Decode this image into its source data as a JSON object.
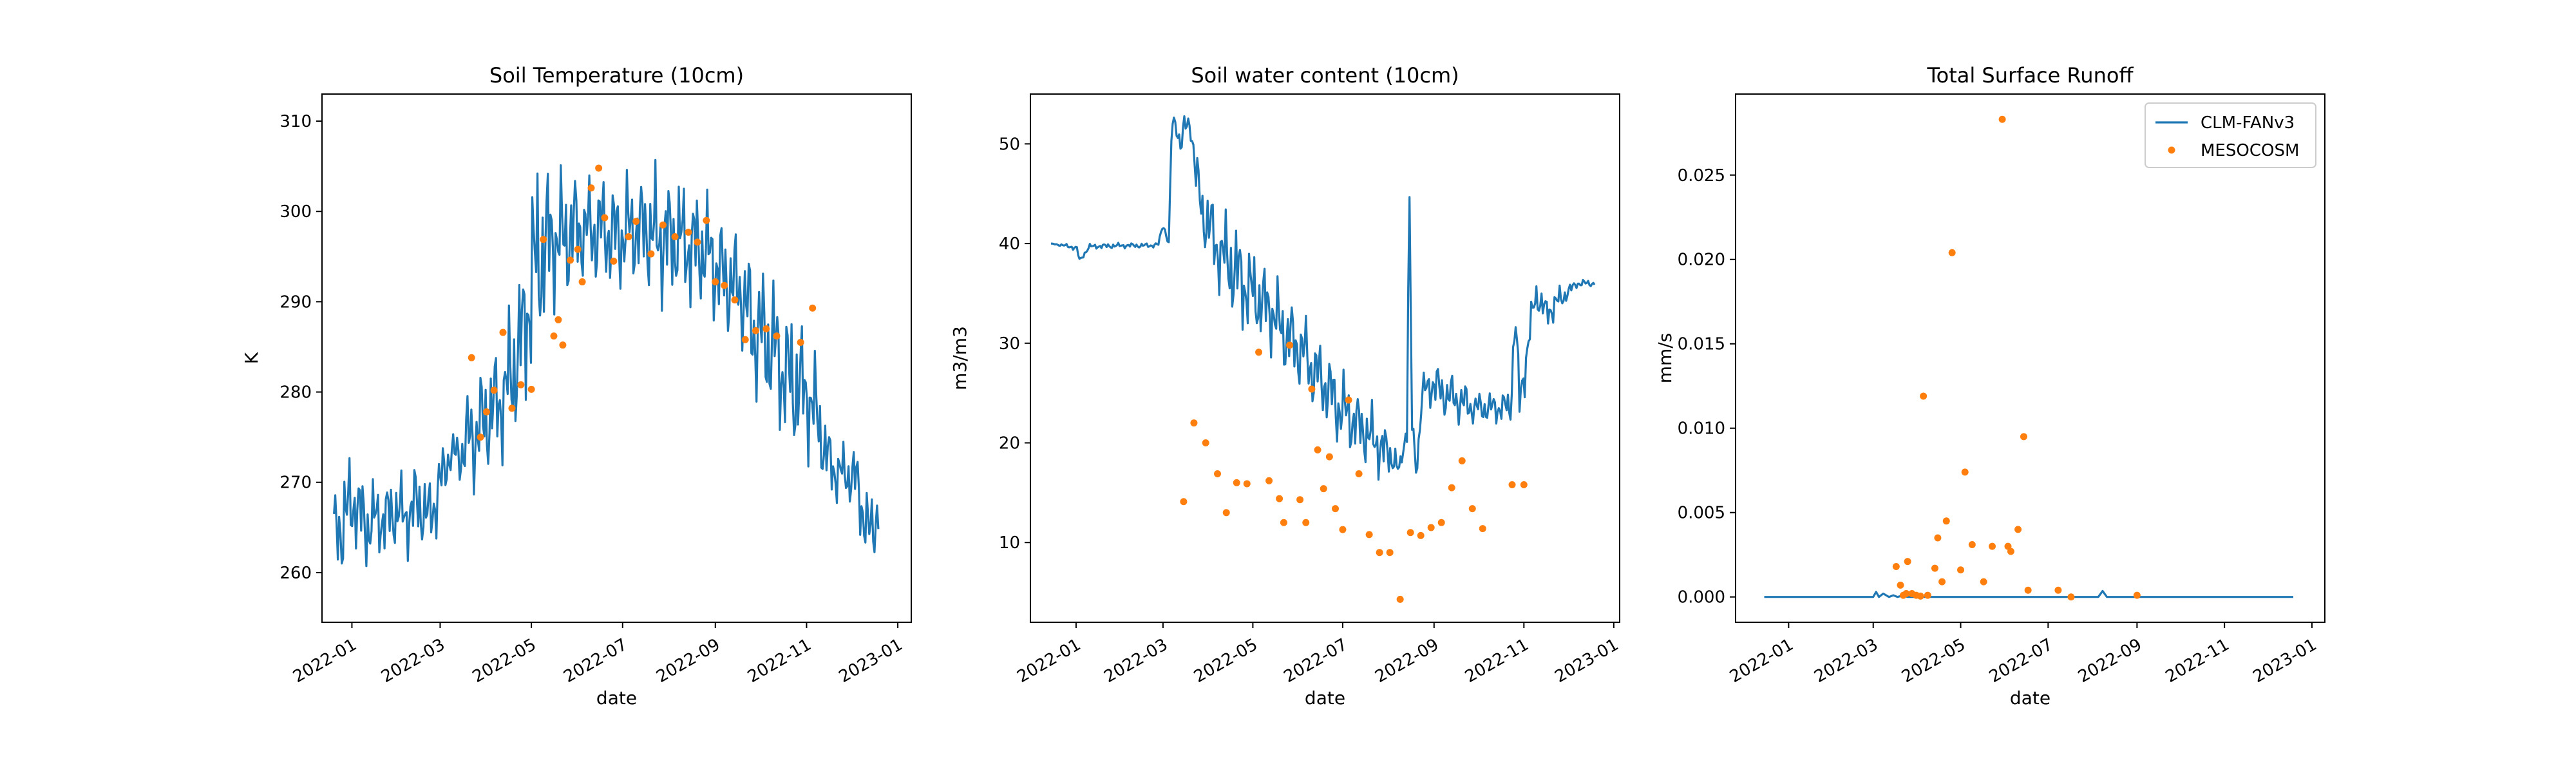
{
  "chart_data": [
    {
      "type": "line",
      "title": "Soil Temperature (10cm)",
      "xlabel": "date",
      "ylabel": "K",
      "xlim": [
        "2021-12-12",
        "2023-01-10"
      ],
      "ylim": [
        254.5,
        313
      ],
      "yticks": [
        260,
        270,
        280,
        290,
        300,
        310
      ],
      "xticks": [
        "2022-01",
        "2022-03",
        "2022-05",
        "2022-07",
        "2022-09",
        "2022-11",
        "2023-01"
      ],
      "grid": false,
      "series": [
        {
          "name": "CLM-FANv3",
          "style": "line",
          "color": "#1f77b4",
          "x": [
            "2021-12-20",
            "2021-12-27",
            "2022-01-03",
            "2022-01-10",
            "2022-01-17",
            "2022-01-24",
            "2022-01-31",
            "2022-02-07",
            "2022-02-14",
            "2022-02-21",
            "2022-02-28",
            "2022-03-07",
            "2022-03-14",
            "2022-03-21",
            "2022-03-28",
            "2022-04-04",
            "2022-04-11",
            "2022-04-18",
            "2022-04-25",
            "2022-05-02",
            "2022-05-09",
            "2022-05-16",
            "2022-05-23",
            "2022-05-30",
            "2022-06-06",
            "2022-06-13",
            "2022-06-20",
            "2022-06-27",
            "2022-07-04",
            "2022-07-11",
            "2022-07-18",
            "2022-07-25",
            "2022-08-01",
            "2022-08-08",
            "2022-08-15",
            "2022-08-22",
            "2022-08-29",
            "2022-09-05",
            "2022-09-12",
            "2022-09-19",
            "2022-09-26",
            "2022-10-03",
            "2022-10-10",
            "2022-10-17",
            "2022-10-24",
            "2022-10-31",
            "2022-11-07",
            "2022-11-14",
            "2022-11-21",
            "2022-11-28",
            "2022-12-05",
            "2022-12-12",
            "2022-12-19"
          ],
          "y": [
            264,
            266,
            268,
            265,
            266,
            266,
            267,
            266,
            268,
            266,
            269,
            273,
            273,
            275,
            276,
            278,
            279,
            282,
            286,
            293,
            296,
            297,
            297,
            298,
            298,
            298,
            298,
            297,
            298,
            298,
            298,
            297,
            297,
            297,
            296,
            296,
            295,
            293,
            292,
            291,
            287,
            286,
            285,
            282,
            281,
            280,
            278,
            273,
            271,
            271,
            270,
            264,
            267
          ],
          "band": [
            6,
            8,
            6,
            6,
            5,
            5,
            5,
            5,
            6,
            5,
            6,
            3,
            4,
            8,
            8,
            8,
            8,
            10,
            10,
            14,
            12,
            9,
            9,
            8,
            7,
            8,
            8,
            8,
            8,
            7,
            8,
            9,
            8,
            8,
            8,
            8,
            8,
            8,
            8,
            8,
            10,
            10,
            10,
            9,
            10,
            8,
            7,
            5,
            4,
            4,
            5,
            6,
            5
          ]
        },
        {
          "name": "MESOCOSM",
          "style": "points",
          "color": "#ff7f0e",
          "x": [
            "2022-03-22",
            "2022-03-28",
            "2022-04-01",
            "2022-04-06",
            "2022-04-12",
            "2022-04-18",
            "2022-04-24",
            "2022-05-01",
            "2022-05-09",
            "2022-05-16",
            "2022-05-19",
            "2022-05-22",
            "2022-05-27",
            "2022-06-01",
            "2022-06-04",
            "2022-06-10",
            "2022-06-15",
            "2022-06-19",
            "2022-06-25",
            "2022-07-05",
            "2022-07-10",
            "2022-07-20",
            "2022-07-28",
            "2022-08-05",
            "2022-08-14",
            "2022-08-20",
            "2022-08-26",
            "2022-09-01",
            "2022-09-07",
            "2022-09-14",
            "2022-09-21",
            "2022-09-28",
            "2022-10-05",
            "2022-10-12",
            "2022-10-28",
            "2022-11-05"
          ],
          "y": [
            283.8,
            275,
            277.8,
            280.2,
            286.6,
            278.2,
            280.8,
            280.3,
            296.9,
            286.2,
            288,
            285.2,
            294.6,
            295.8,
            292.2,
            302.6,
            304.8,
            299.3,
            294.5,
            297.2,
            298.9,
            295.3,
            298.5,
            297.2,
            297.7,
            296.6,
            299,
            292.2,
            291.8,
            290.2,
            285.8,
            286.8,
            287,
            286.2,
            285.5,
            289.3
          ]
        }
      ]
    },
    {
      "type": "line",
      "title": "Soil water content (10cm)",
      "xlabel": "date",
      "ylabel": "m3/m3",
      "xlim": [
        "2021-12-01",
        "2023-01-05"
      ],
      "ylim": [
        2,
        55
      ],
      "yticks": [
        10,
        20,
        30,
        40,
        50
      ],
      "xticks": [
        "2022-01",
        "2022-03",
        "2022-05",
        "2022-07",
        "2022-09",
        "2022-11",
        "2023-01"
      ],
      "grid": false,
      "series": [
        {
          "name": "CLM-FANv3",
          "style": "line",
          "color": "#1f77b4",
          "x": [
            "2021-12-15",
            "2021-12-28",
            "2022-01-02",
            "2022-01-03",
            "2022-01-10",
            "2022-02-01",
            "2022-02-20",
            "2022-02-26",
            "2022-03-01",
            "2022-03-03",
            "2022-03-05",
            "2022-03-07",
            "2022-03-10",
            "2022-03-13",
            "2022-03-16",
            "2022-03-20",
            "2022-03-24",
            "2022-03-28",
            "2022-04-01",
            "2022-04-05",
            "2022-04-10",
            "2022-04-15",
            "2022-04-20",
            "2022-04-25",
            "2022-05-01",
            "2022-05-08",
            "2022-05-15",
            "2022-05-22",
            "2022-05-29",
            "2022-06-05",
            "2022-06-12",
            "2022-06-19",
            "2022-06-26",
            "2022-07-03",
            "2022-07-10",
            "2022-07-17",
            "2022-07-24",
            "2022-07-31",
            "2022-08-05",
            "2022-08-08",
            "2022-08-10",
            "2022-08-14",
            "2022-08-15",
            "2022-08-17",
            "2022-08-20",
            "2022-08-24",
            "2022-08-31",
            "2022-09-07",
            "2022-09-14",
            "2022-09-21",
            "2022-09-28",
            "2022-10-05",
            "2022-10-12",
            "2022-10-19",
            "2022-10-23",
            "2022-10-26",
            "2022-10-29",
            "2022-11-02",
            "2022-11-09",
            "2022-11-16",
            "2022-11-23",
            "2022-11-30",
            "2022-12-07",
            "2022-12-14",
            "2022-12-19"
          ],
          "y": [
            40,
            39.7,
            39.5,
            38.2,
            39.7,
            39.8,
            39.8,
            39.9,
            42,
            41,
            40,
            52,
            52,
            50,
            51.6,
            52,
            46,
            43,
            42,
            40,
            39,
            38,
            37,
            36,
            35,
            34,
            33,
            31,
            30,
            29,
            27,
            26,
            24,
            23,
            22,
            21,
            20,
            19,
            18.5,
            17,
            18.5,
            22,
            49.5,
            22,
            17,
            25,
            26,
            25,
            24.5,
            24,
            23.5,
            23.5,
            23.5,
            23.6,
            23.5,
            33,
            24,
            28,
            35,
            33,
            34,
            35,
            36,
            36,
            36
          ],
          "band": [
            0,
            0.3,
            0.3,
            0.3,
            0.3,
            0.3,
            0.3,
            0.3,
            0.5,
            0.5,
            0.5,
            1,
            1.5,
            2,
            2,
            2,
            4,
            4,
            5,
            5,
            5,
            6,
            6,
            6,
            5,
            5,
            5,
            5,
            5,
            5,
            5,
            5,
            5,
            5,
            4,
            4,
            4,
            3,
            2,
            1,
            1,
            2,
            0,
            2,
            1,
            2,
            3,
            3,
            3,
            3,
            2,
            2,
            2,
            2,
            2,
            3,
            3,
            3,
            2,
            2,
            2,
            1,
            0.5,
            0.5,
            0.3
          ]
        },
        {
          "name": "MESOCOSM",
          "style": "points",
          "color": "#ff7f0e",
          "x": [
            "2022-03-15",
            "2022-03-22",
            "2022-03-30",
            "2022-04-07",
            "2022-04-13",
            "2022-04-20",
            "2022-04-27",
            "2022-05-05",
            "2022-05-12",
            "2022-05-19",
            "2022-05-22",
            "2022-05-26",
            "2022-06-02",
            "2022-06-06",
            "2022-06-10",
            "2022-06-14",
            "2022-06-18",
            "2022-06-22",
            "2022-06-26",
            "2022-07-01",
            "2022-07-05",
            "2022-07-12",
            "2022-07-19",
            "2022-07-26",
            "2022-08-02",
            "2022-08-09",
            "2022-08-16",
            "2022-08-23",
            "2022-08-30",
            "2022-09-06",
            "2022-09-13",
            "2022-09-20",
            "2022-09-27",
            "2022-10-04",
            "2022-10-24",
            "2022-11-01"
          ],
          "y": [
            14.1,
            22,
            20,
            16.9,
            13,
            16,
            15.9,
            29.1,
            16.2,
            14.4,
            12,
            29.8,
            14.3,
            12,
            25.4,
            19.3,
            15.4,
            18.6,
            13.4,
            11.3,
            24.3,
            16.9,
            10.8,
            9,
            9,
            4.3,
            11,
            10.7,
            11.5,
            12,
            15.5,
            18.2,
            13.4,
            11.4,
            15.8,
            15.8
          ]
        }
      ]
    },
    {
      "type": "line",
      "title": "Total Surface Runoff",
      "xlabel": "date",
      "ylabel": "mm/s",
      "xlim": [
        "2021-11-25",
        "2023-01-10"
      ],
      "ylim": [
        -0.0015,
        0.0298
      ],
      "yticks": [
        0.0,
        0.005,
        0.01,
        0.015,
        0.02,
        0.025
      ],
      "ytick_labels": [
        "0.000",
        "0.005",
        "0.010",
        "0.015",
        "0.020",
        "0.025"
      ],
      "xticks": [
        "2022-01",
        "2022-03",
        "2022-05",
        "2022-07",
        "2022-09",
        "2022-11",
        "2023-01"
      ],
      "grid": false,
      "legend": {
        "position": "top-right",
        "entries": [
          "CLM-FANv3",
          "MESOCOSM"
        ]
      },
      "series": [
        {
          "name": "CLM-FANv3",
          "style": "line",
          "color": "#1f77b4",
          "x": [
            "2021-12-15",
            "2022-03-01",
            "2022-03-03",
            "2022-03-05",
            "2022-03-08",
            "2022-03-12",
            "2022-03-15",
            "2022-03-18",
            "2022-03-22",
            "2022-03-25",
            "2022-04-01",
            "2022-04-10",
            "2022-05-01",
            "2022-06-01",
            "2022-07-01",
            "2022-07-20",
            "2022-08-05",
            "2022-08-08",
            "2022-08-11",
            "2022-09-01",
            "2022-10-01",
            "2022-11-01",
            "2022-12-01",
            "2022-12-19"
          ],
          "y": [
            0,
            0,
            0.0003,
            0,
            0.0002,
            0,
            0.0001,
            0,
            0.0001,
            0,
            0,
            0,
            0,
            0,
            0,
            0,
            0,
            0.00035,
            0,
            0,
            0,
            0,
            0,
            0
          ]
        },
        {
          "name": "MESOCOSM",
          "style": "points",
          "color": "#ff7f0e",
          "x": [
            "2022-03-17",
            "2022-03-20",
            "2022-03-22",
            "2022-03-24",
            "2022-03-25",
            "2022-03-28",
            "2022-03-31",
            "2022-04-03",
            "2022-04-05",
            "2022-04-08",
            "2022-04-13",
            "2022-04-15",
            "2022-04-18",
            "2022-04-21",
            "2022-04-25",
            "2022-05-01",
            "2022-05-04",
            "2022-05-09",
            "2022-05-17",
            "2022-05-23",
            "2022-05-30",
            "2022-06-03",
            "2022-06-05",
            "2022-06-10",
            "2022-06-14",
            "2022-06-17",
            "2022-07-08",
            "2022-07-17",
            "2022-09-01"
          ],
          "y": [
            0.0018,
            0.0007,
            0.0001,
            0.0002,
            0.0021,
            0.0002,
            0.0001,
            5e-05,
            0.0119,
            0.0001,
            0.0017,
            0.0035,
            0.0009,
            0.0045,
            0.0204,
            0.0016,
            0.0074,
            0.0031,
            0.0009,
            0.003,
            0.0283,
            0.003,
            0.0027,
            0.004,
            0.0095,
            0.0004,
            0.0004,
            0.0,
            0.0001
          ]
        }
      ]
    }
  ]
}
